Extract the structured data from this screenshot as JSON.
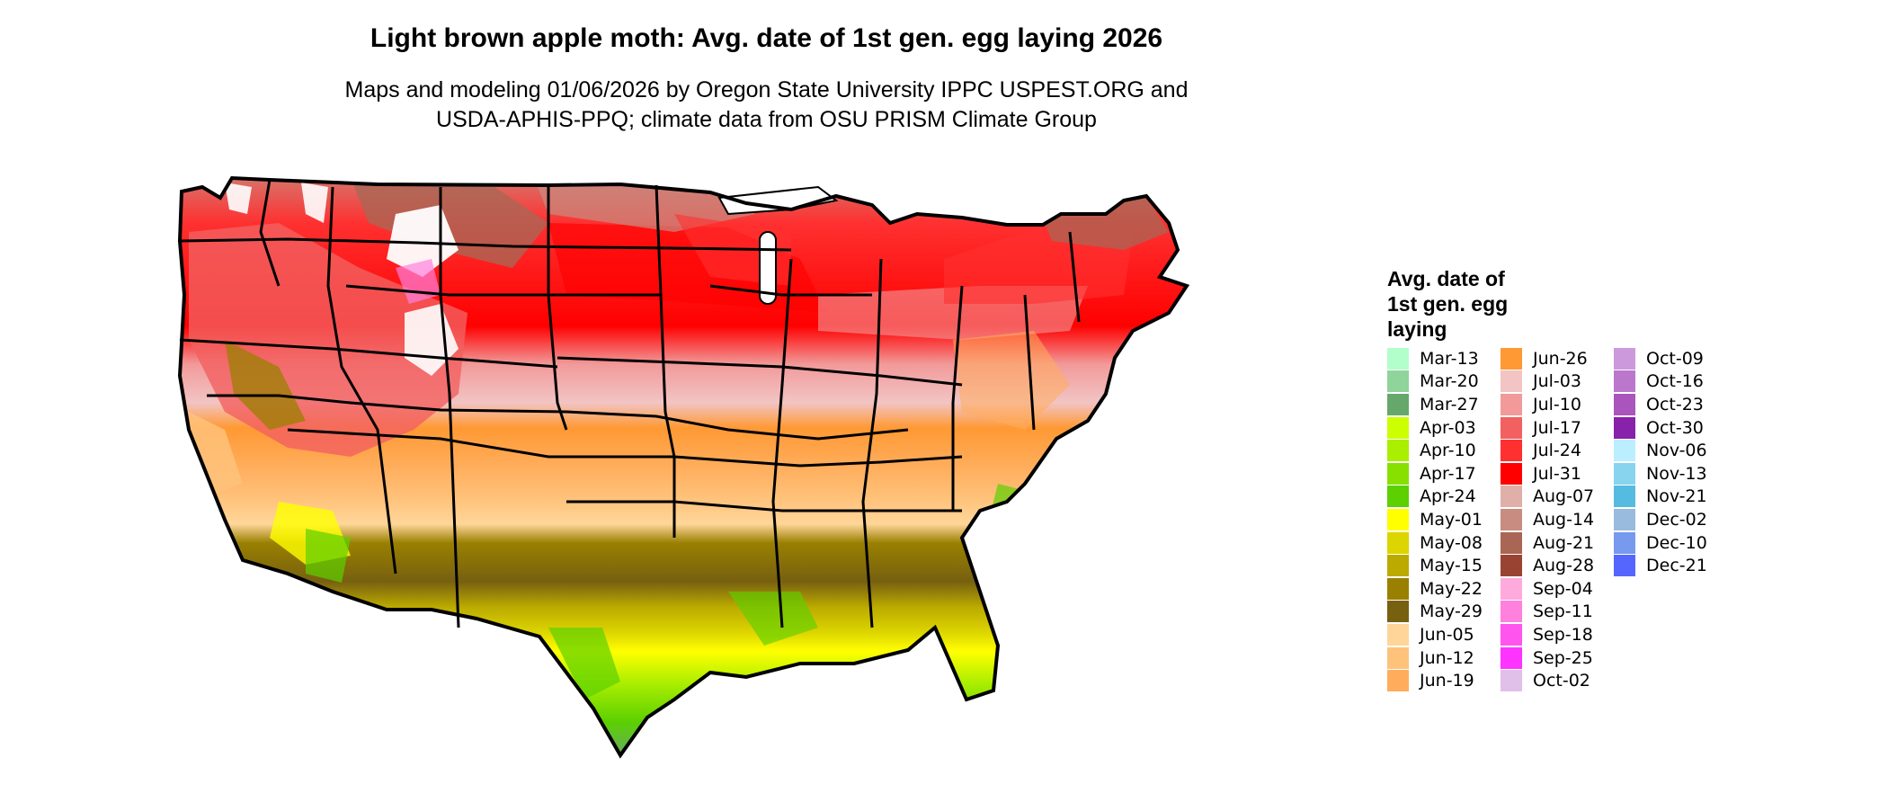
{
  "title": "Light brown apple moth: Avg. date of 1st gen. egg laying 2026",
  "subtitle": {
    "line1": "Maps and modeling 01/06/2026 by Oregon State University IPPC USPEST.ORG and",
    "line2": "USDA-APHIS-PPQ; climate data from OSU PRISM Climate Group"
  },
  "legend": {
    "title_line1": "Avg. date of",
    "title_line2": "1st gen. egg",
    "title_line3": "laying",
    "columns": [
      [
        {
          "label": "Mar-13",
          "color": "#b3ffcc"
        },
        {
          "label": "Mar-20",
          "color": "#8fd49b"
        },
        {
          "label": "Mar-27",
          "color": "#66a86b"
        },
        {
          "label": "Apr-03",
          "color": "#ccff00"
        },
        {
          "label": "Apr-10",
          "color": "#aaee00"
        },
        {
          "label": "Apr-17",
          "color": "#88e000"
        },
        {
          "label": "Apr-24",
          "color": "#5cd000"
        },
        {
          "label": "May-01",
          "color": "#ffff00"
        },
        {
          "label": "May-08",
          "color": "#ddd500"
        },
        {
          "label": "May-15",
          "color": "#bbaa00"
        },
        {
          "label": "May-22",
          "color": "#998000"
        },
        {
          "label": "May-29",
          "color": "#776010"
        },
        {
          "label": "Jun-05",
          "color": "#ffd699"
        },
        {
          "label": "Jun-12",
          "color": "#ffc27a"
        },
        {
          "label": "Jun-19",
          "color": "#ffad5c"
        }
      ],
      [
        {
          "label": "Jun-26",
          "color": "#ff9933"
        },
        {
          "label": "Jul-03",
          "color": "#f2c4c4"
        },
        {
          "label": "Jul-10",
          "color": "#f29a9a"
        },
        {
          "label": "Jul-17",
          "color": "#f26060"
        },
        {
          "label": "Jul-24",
          "color": "#ff3030"
        },
        {
          "label": "Jul-31",
          "color": "#ff0000"
        },
        {
          "label": "Aug-07",
          "color": "#e0b0a8"
        },
        {
          "label": "Aug-14",
          "color": "#c88c80"
        },
        {
          "label": "Aug-21",
          "color": "#aa6655"
        },
        {
          "label": "Aug-28",
          "color": "#994433"
        },
        {
          "label": "Sep-04",
          "color": "#ffaadd"
        },
        {
          "label": "Sep-11",
          "color": "#ff80dd"
        },
        {
          "label": "Sep-18",
          "color": "#ff55ee"
        },
        {
          "label": "Sep-25",
          "color": "#ff33ff"
        },
        {
          "label": "Oct-02",
          "color": "#e0c0e8"
        }
      ],
      [
        {
          "label": "Oct-09",
          "color": "#cc99dd"
        },
        {
          "label": "Oct-16",
          "color": "#bb77cc"
        },
        {
          "label": "Oct-23",
          "color": "#aa55bb"
        },
        {
          "label": "Oct-30",
          "color": "#8822aa"
        },
        {
          "label": "Nov-06",
          "color": "#bbeeff"
        },
        {
          "label": "Nov-13",
          "color": "#88d4ee"
        },
        {
          "label": "Nov-21",
          "color": "#55bbe0"
        },
        {
          "label": "Dec-02",
          "color": "#99bbdd"
        },
        {
          "label": "Dec-10",
          "color": "#7799ee"
        },
        {
          "label": "Dec-21",
          "color": "#5566ff"
        }
      ]
    ]
  }
}
